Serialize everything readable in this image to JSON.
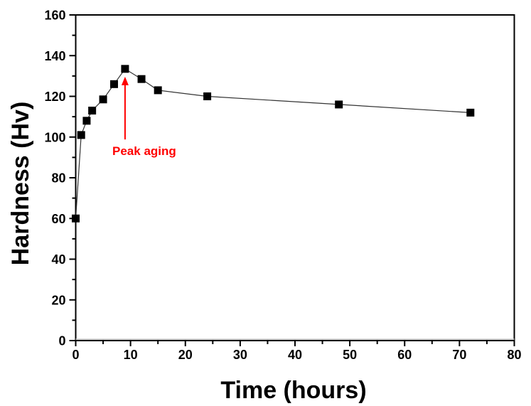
{
  "chart_data": {
    "type": "line",
    "title": "",
    "xlabel": "Time (hours)",
    "ylabel": "Hardness (Hv)",
    "xlim": [
      0,
      80
    ],
    "ylim": [
      0,
      160
    ],
    "xticks": [
      0,
      10,
      20,
      30,
      40,
      50,
      60,
      70,
      80
    ],
    "yticks": [
      0,
      20,
      40,
      60,
      80,
      100,
      120,
      140,
      160
    ],
    "x_minor_step": 5,
    "y_minor_step": 10,
    "grid": false,
    "legend": null,
    "series": [
      {
        "name": "Hardness",
        "marker": "square",
        "color": "#000000",
        "x": [
          0,
          1,
          2,
          3,
          5,
          7,
          9,
          12,
          15,
          24,
          48,
          72
        ],
        "y": [
          60,
          101,
          108,
          113,
          118.5,
          126,
          133.5,
          128.5,
          123,
          120,
          116,
          112
        ]
      }
    ],
    "annotations": [
      {
        "text": "Peak aging",
        "color": "#ff0000",
        "arrow_to": {
          "x": 9,
          "y": 133.5
        },
        "arrow_from": {
          "x": 9,
          "y": 110
        }
      }
    ]
  }
}
